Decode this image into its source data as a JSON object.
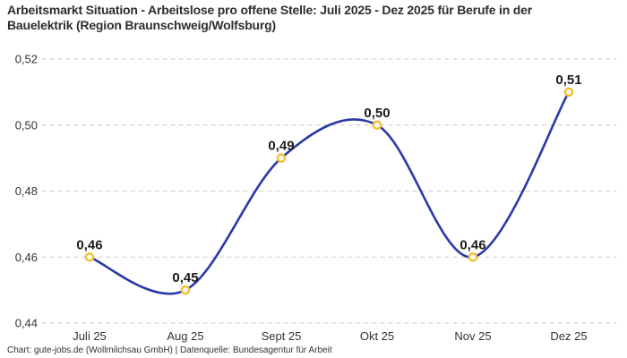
{
  "header": {
    "title": "Arbeitsmarkt Situation - Arbeitslose pro offene Stelle: Juli 2025 - Dez 2025 für Berufe in der Bauelektrik (Region Braunschweig/Wolfsburg)"
  },
  "footer": {
    "credit": "Chart: gute-jobs.de (Wollmilchsau GmbH) | Datenquelle: Bundesagentur für Arbeit"
  },
  "colors": {
    "line": "#2a39a6",
    "marker_stroke": "#f5be33",
    "marker_fill": "#ffffff",
    "grid": "#cccccc",
    "title_text": "#2e2e2e",
    "axis_text": "#333333",
    "value_label_text": "#1a1a1a",
    "background": "#ffffff"
  },
  "chart_data": {
    "type": "line",
    "title": "Arbeitsmarkt Situation - Arbeitslose pro offene Stelle: Juli 2025 - Dez 2025 für Berufe in der Bauelektrik (Region Braunschweig/Wolfsburg)",
    "categories": [
      "Juli 25",
      "Aug 25",
      "Sept 25",
      "Okt 25",
      "Nov 25",
      "Dez 25"
    ],
    "values": [
      0.46,
      0.45,
      0.49,
      0.5,
      0.46,
      0.51
    ],
    "value_labels": [
      "0,46",
      "0,45",
      "0,49",
      "0,50",
      "0,46",
      "0,51"
    ],
    "y_ticks": [
      0.44,
      0.46,
      0.48,
      0.5,
      0.52
    ],
    "y_tick_labels": [
      "0,44",
      "0,46",
      "0,48",
      "0,50",
      "0,52"
    ],
    "ylim": [
      0.44,
      0.52
    ],
    "xlabel": "",
    "ylabel": "",
    "grid": "horizontal-dashed",
    "legend": "none",
    "line_shape": "smooth"
  }
}
